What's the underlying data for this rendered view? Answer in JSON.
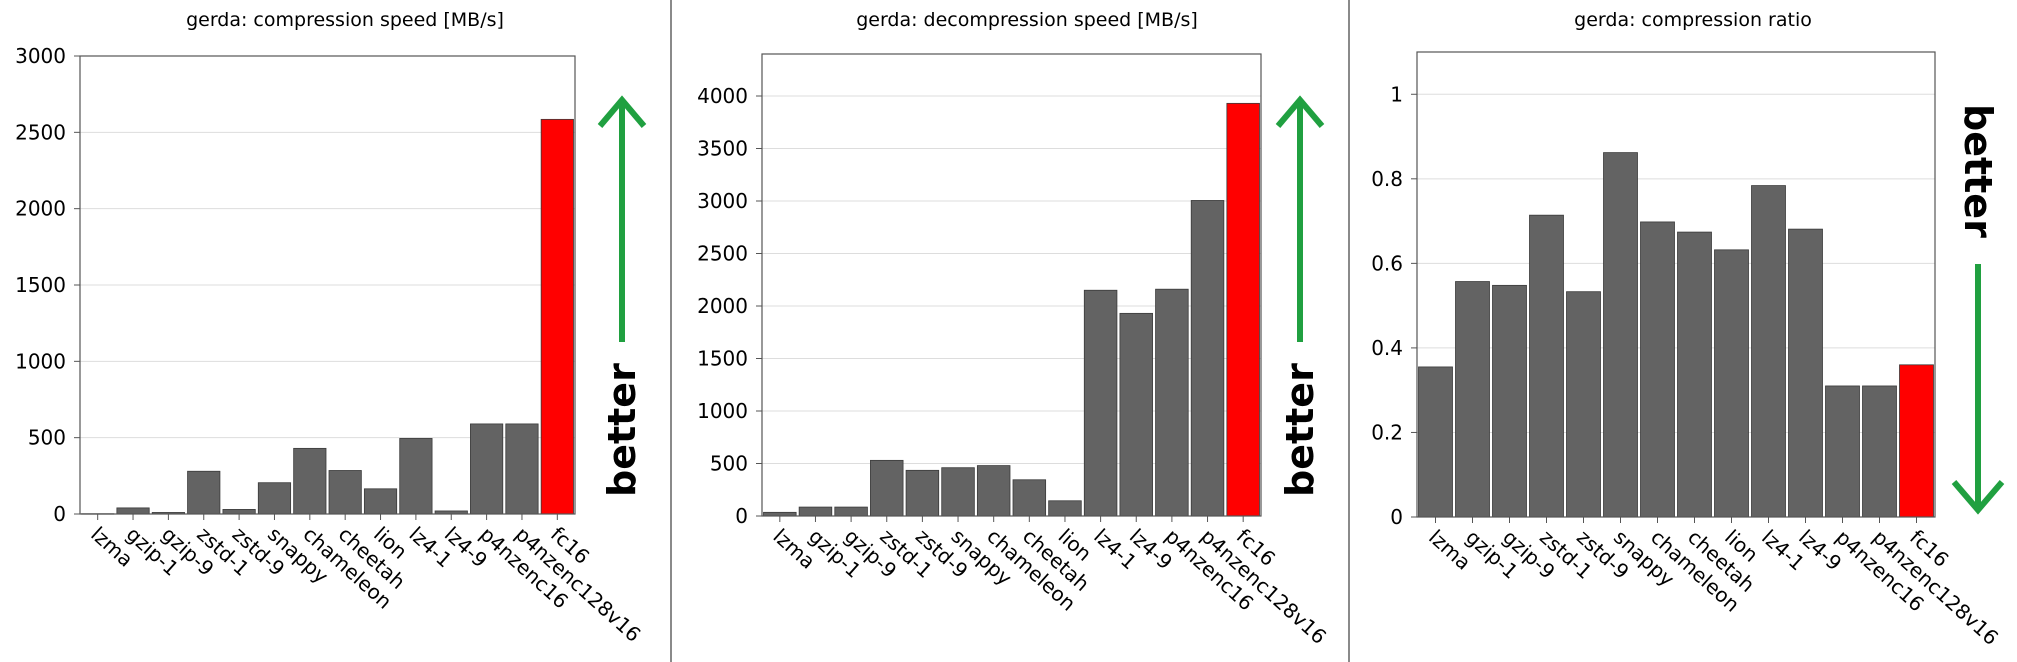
{
  "colors": {
    "bar": "#636363",
    "highlight": "#ff0000",
    "arrow": "#20a040",
    "grid": "#dddddd",
    "axis": "#555555"
  },
  "chart_data": [
    {
      "type": "bar",
      "title": "gerda: compression speed [MB/s]",
      "categories": [
        "lzma",
        "gzip-1",
        "gzip-9",
        "zstd-1",
        "zstd-9",
        "snappy",
        "chameleon",
        "cheetah",
        "lion",
        "lz4-1",
        "lz4-9",
        "p4nzenc16",
        "p4nzenc128v16",
        "fc16"
      ],
      "values": [
        2,
        40,
        10,
        280,
        30,
        205,
        430,
        285,
        165,
        495,
        20,
        590,
        590,
        2585
      ],
      "highlight_index": 13,
      "ylim": [
        0,
        3000
      ],
      "yticks": [
        0,
        500,
        1000,
        1500,
        2000,
        2500,
        3000
      ],
      "grid": true,
      "annotation": {
        "text": "better",
        "direction": "up"
      }
    },
    {
      "type": "bar",
      "title": "gerda: decompression speed [MB/s]",
      "categories": [
        "lzma",
        "gzip-1",
        "gzip-9",
        "zstd-1",
        "zstd-9",
        "snappy",
        "chameleon",
        "cheetah",
        "lion",
        "lz4-1",
        "lz4-9",
        "p4nzenc16",
        "p4nzenc128v16",
        "fc16"
      ],
      "values": [
        35,
        85,
        85,
        530,
        435,
        460,
        480,
        345,
        145,
        2150,
        1930,
        2160,
        3005,
        3930
      ],
      "highlight_index": 13,
      "ylim": [
        0,
        4400
      ],
      "yticks": [
        0,
        500,
        1000,
        1500,
        2000,
        2500,
        3000,
        3500,
        4000
      ],
      "grid": true,
      "annotation": {
        "text": "better",
        "direction": "up"
      }
    },
    {
      "type": "bar",
      "title": "gerda: compression ratio",
      "categories": [
        "lzma",
        "gzip-1",
        "gzip-9",
        "zstd-1",
        "zstd-9",
        "snappy",
        "chameleon",
        "cheetah",
        "lion",
        "lz4-1",
        "lz4-9",
        "p4nzenc16",
        "p4nzenc128v16",
        "fc16"
      ],
      "values": [
        0.355,
        0.557,
        0.548,
        0.714,
        0.533,
        0.862,
        0.698,
        0.674,
        0.632,
        0.784,
        0.681,
        0.31,
        0.31,
        0.36
      ],
      "highlight_index": 13,
      "ylim": [
        0,
        1.1
      ],
      "yticks": [
        0,
        0.2,
        0.4,
        0.6,
        0.8,
        1
      ],
      "grid": true,
      "annotation": {
        "text": "better",
        "direction": "down"
      }
    }
  ]
}
